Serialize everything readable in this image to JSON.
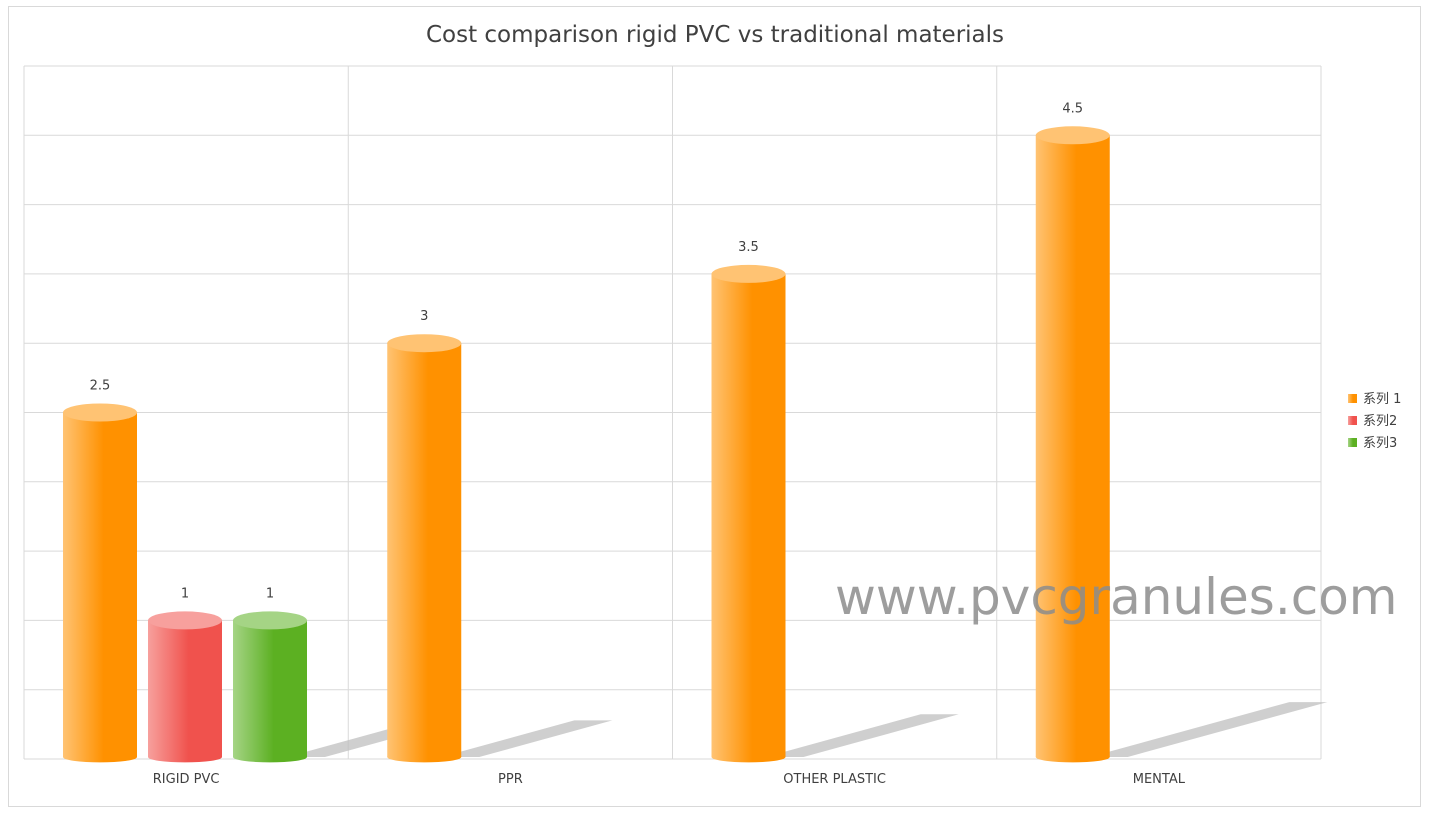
{
  "chart_data": {
    "type": "bar",
    "style": "3d-cylinder",
    "title": "Cost comparison rigid PVC vs traditional materials",
    "xlabel": "",
    "ylabel": "",
    "categories": [
      "RIGID PVC",
      "PPR",
      "OTHER PLASTIC",
      "MENTAL"
    ],
    "series": [
      {
        "name": "系列 1",
        "values": [
          2.5,
          3,
          3.5,
          4.5
        ],
        "color": "#ff9100"
      },
      {
        "name": "系列2",
        "values": [
          1,
          null,
          null,
          null
        ],
        "color": "#f0524d"
      },
      {
        "name": "系列3",
        "values": [
          1,
          null,
          null,
          null
        ],
        "color": "#5cb022"
      }
    ],
    "ylim": [
      0,
      5
    ],
    "y_gridline_step": 0.5,
    "y_tick_labels_shown": false,
    "grid": true,
    "data_labels": true,
    "legend_position": "right"
  },
  "watermark": "www.pvcgranules.com"
}
